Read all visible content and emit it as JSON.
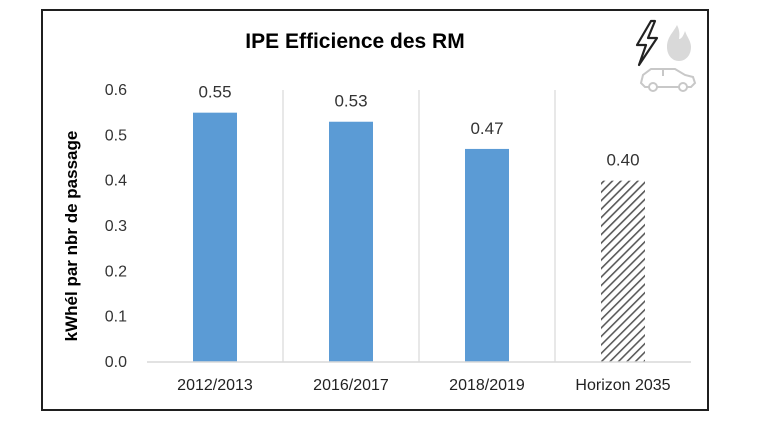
{
  "chart_data": {
    "type": "bar",
    "title": "IPE Efficience des RM",
    "ylabel": "kWhél par nbr de passage",
    "xlabel": "",
    "categories": [
      "2012/2013",
      "2016/2017",
      "2018/2019",
      "Horizon 2035"
    ],
    "values": [
      0.55,
      0.53,
      0.47,
      0.4
    ],
    "data_labels": [
      "0.55",
      "0.53",
      "0.47",
      "0.40"
    ],
    "ylim": [
      0,
      0.6
    ],
    "yticks": [
      "0.0",
      "0.1",
      "0.2",
      "0.3",
      "0.4",
      "0.5",
      "0.6"
    ],
    "grid": "vertical-separators",
    "legend": "none",
    "bar_styles": [
      "solid",
      "solid",
      "solid",
      "hatched"
    ],
    "colors": {
      "bar": "#5b9bd5",
      "hatch": "#595959",
      "axis": "#d9d9d9"
    }
  },
  "icons": [
    "lightning-icon",
    "flame-icon",
    "car-icon"
  ]
}
